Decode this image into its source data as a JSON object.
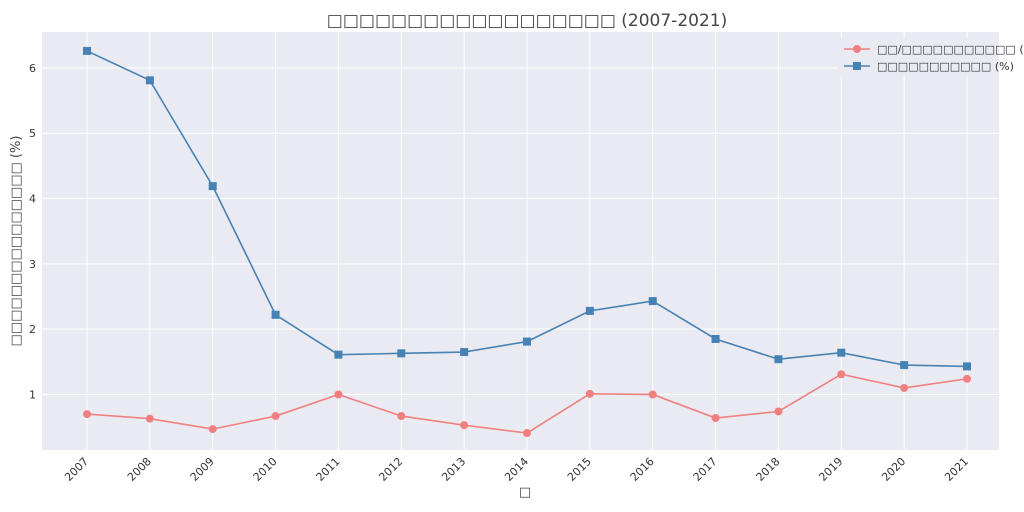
{
  "chart_data": {
    "type": "line",
    "title": "□□□□□□□□□□□□□□□□□□ (2007-2021)",
    "xlabel": "□",
    "ylabel": "□□□□□□□□□□□□□□□ (%)",
    "x": [
      "2007",
      "2008",
      "2009",
      "2010",
      "2011",
      "2012",
      "2013",
      "2014",
      "2015",
      "2016",
      "2017",
      "2018",
      "2019",
      "2020",
      "2021"
    ],
    "ylim": [
      0.15,
      6.55
    ],
    "yticks": [
      1,
      2,
      3,
      4,
      5,
      6
    ],
    "grid": true,
    "legend": "top-right",
    "series": [
      {
        "name": "□□/□□□□□□□□□□□ (%)",
        "color": "#f08080",
        "marker": "circle",
        "values": [
          0.7,
          0.63,
          0.47,
          0.67,
          1.0,
          0.67,
          0.53,
          0.41,
          1.01,
          1.0,
          0.64,
          0.74,
          1.31,
          1.1,
          1.24
        ]
      },
      {
        "name": "□□□□□□□□□□□ (%)",
        "color": "#4682b4",
        "marker": "square",
        "values": [
          6.26,
          5.81,
          4.19,
          2.22,
          1.61,
          1.63,
          1.65,
          1.81,
          2.28,
          2.43,
          1.85,
          1.54,
          1.64,
          1.45,
          1.43
        ]
      }
    ]
  }
}
